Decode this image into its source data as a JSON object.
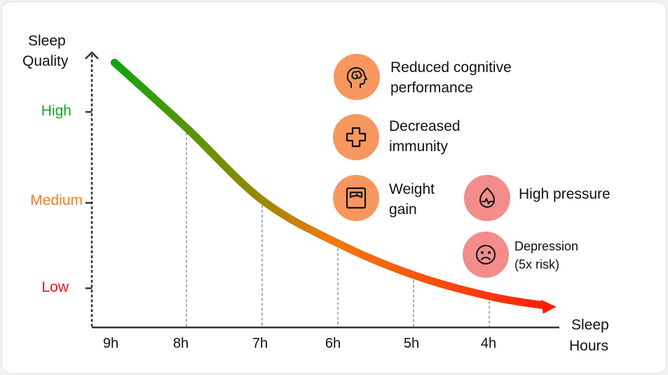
{
  "colors": {
    "high": "#1aa31a",
    "medium": "#f57c1f",
    "low": "#f21010",
    "orange_circle": "#f7975f",
    "pink_circle": "#f28d8b",
    "axis": "#333333"
  },
  "chart_data": {
    "type": "line",
    "title": "",
    "ylabel": "Sleep Quality",
    "xlabel": "Sleep Hours",
    "x_ticks": [
      "9h",
      "8h",
      "7h",
      "6h",
      "5h",
      "4h"
    ],
    "y_ticks": [
      "High",
      "Medium",
      "Low"
    ],
    "y_scale_note": "Low=1, Medium=2, High=3",
    "series": [
      {
        "name": "Sleep quality",
        "x": [
          8.95,
          8,
          7,
          6,
          5,
          4,
          3.15
        ],
        "y": [
          3.56,
          2.82,
          2.0,
          1.51,
          1.15,
          0.91,
          0.79
        ]
      }
    ]
  },
  "axis": {
    "y_title_1": "Sleep",
    "y_title_2": "Quality",
    "x_title_1": "Sleep",
    "x_title_2": "Hours"
  },
  "effects": [
    {
      "icon": "brain-head-icon",
      "line1": "Reduced cognitive",
      "line2": "performance"
    },
    {
      "icon": "medical-cross-icon",
      "line1": "Decreased",
      "line2": "immunity"
    },
    {
      "icon": "weight-scale-icon",
      "line1": "Weight",
      "line2": "gain"
    },
    {
      "icon": "blood-pressure-drop-icon",
      "line1": "High pressure"
    },
    {
      "icon": "sad-face-icon",
      "line1": "Depression",
      "line2": "(5x risk)"
    }
  ]
}
